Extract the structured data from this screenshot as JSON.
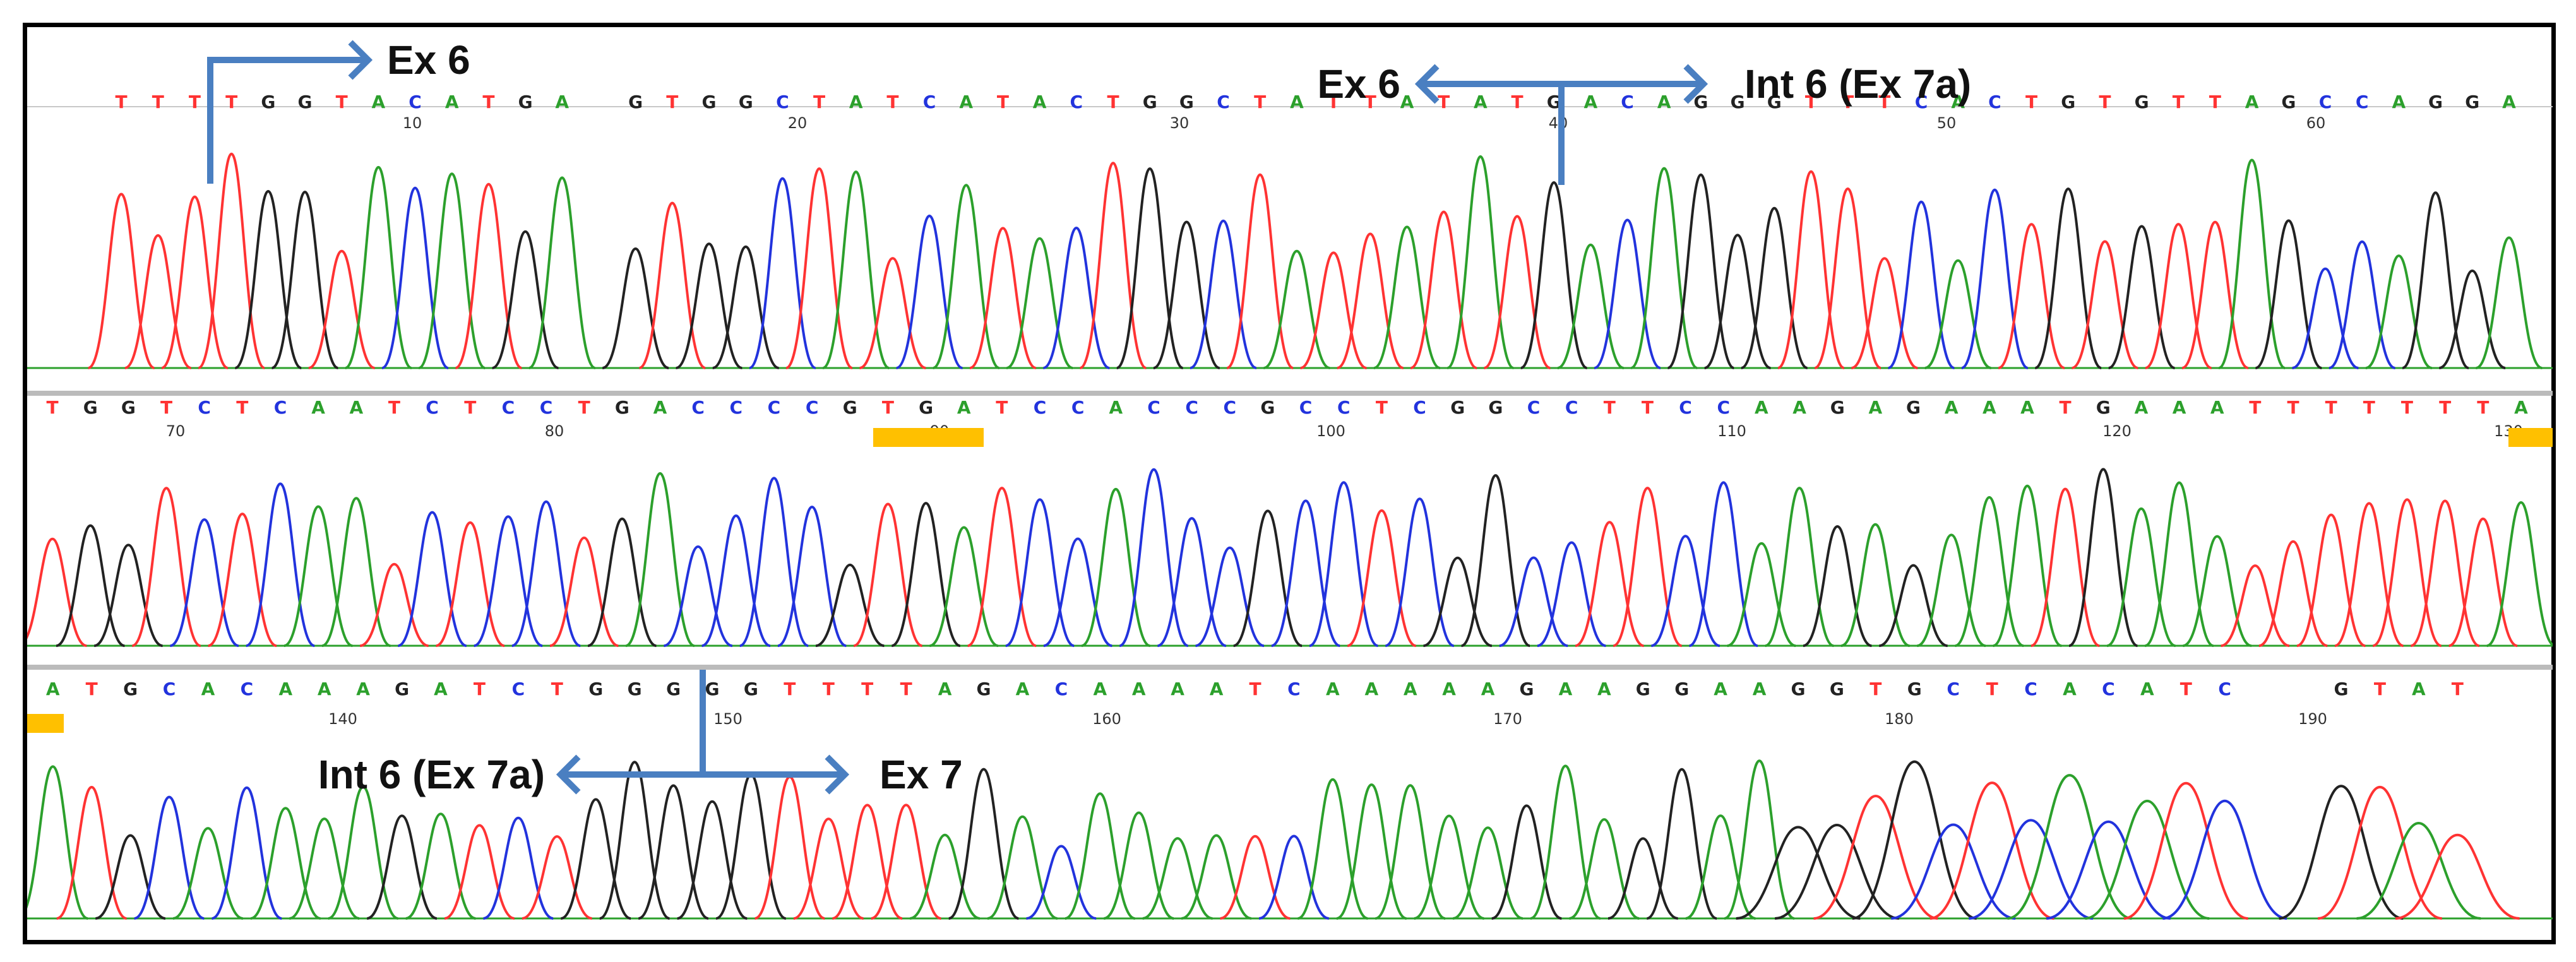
{
  "chart_data": {
    "type": "line",
    "colors": {
      "A": "#2ca02c",
      "C": "#2233dd",
      "G": "#222222",
      "T": "#ff3333"
    },
    "panels": [
      {
        "bases": "TTTTGGTACATGA GTGGCTATCATACTGGCTATTATATGACAGGGTTTCACTGTGTTAGCCAGGA",
        "ticks": [
          10,
          20,
          30,
          40,
          50,
          60
        ]
      },
      {
        "bases": "TGGTCTCAATCTCCTGACCCCGTGATCCACCCGCCTCGGCCTTCCAAGAGAAATGAAATTTTTTTA",
        "ticks": [
          70,
          80,
          90,
          100,
          110,
          120,
          130
        ]
      },
      {
        "bases": "ATGCACAAAGATCTGGGGGTTTTAGACAAAATCAAAAAGAAGGAAGGTGCTCACATC  GTAT",
        "ticks": [
          140,
          150,
          160,
          170,
          180,
          190
        ]
      }
    ],
    "annotations": [
      {
        "label": "Ex 6",
        "direction": "right"
      },
      {
        "label": "Ex 6",
        "direction": "left"
      },
      {
        "label": "Int 6 (Ex 7a)",
        "direction": "right"
      },
      {
        "label": "Int 6 (Ex 7a)",
        "direction": "left"
      },
      {
        "label": "Ex 7",
        "direction": "right"
      }
    ]
  }
}
